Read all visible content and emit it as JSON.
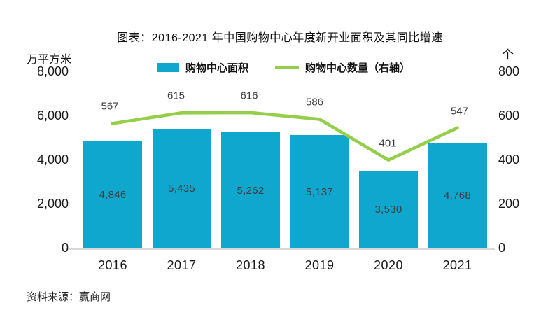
{
  "source": "资料来源：赢商网",
  "chart_data": {
    "type": "bar",
    "subtype": "bar-line-combo",
    "title": "图表：2016-2021 年中国购物中心年度新开业面积及其同比增速",
    "categories": [
      "2016",
      "2017",
      "2018",
      "2019",
      "2020",
      "2021"
    ],
    "series": [
      {
        "name": "购物中心面积",
        "type": "bar",
        "axis": "left",
        "values": [
          4846,
          5435,
          5262,
          5137,
          3530,
          4768
        ],
        "labels": [
          "4,846",
          "5,435",
          "5,262",
          "5,137",
          "3,530",
          "4,768"
        ],
        "color": "#10A7CE"
      },
      {
        "name": "购物中心数量（右轴）",
        "type": "line",
        "axis": "right",
        "values": [
          567,
          615,
          616,
          586,
          401,
          547
        ],
        "labels": [
          "567",
          "615",
          "616",
          "586",
          "401",
          "547"
        ],
        "color": "#94CE4A"
      }
    ],
    "left_axis": {
      "unit": "万平方米",
      "range": [
        0,
        8000
      ],
      "ticks": [
        "8,000",
        "6,000",
        "4,000",
        "2,000",
        "0"
      ],
      "tick_values": [
        8000,
        6000,
        4000,
        2000,
        0
      ]
    },
    "right_axis": {
      "unit": "个",
      "range": [
        0,
        800
      ],
      "ticks": [
        "800",
        "600",
        "400",
        "200",
        "0"
      ],
      "tick_values": [
        800,
        600,
        400,
        200,
        0
      ]
    },
    "legend_position": "top",
    "grid": false,
    "background": "#ffffff"
  }
}
